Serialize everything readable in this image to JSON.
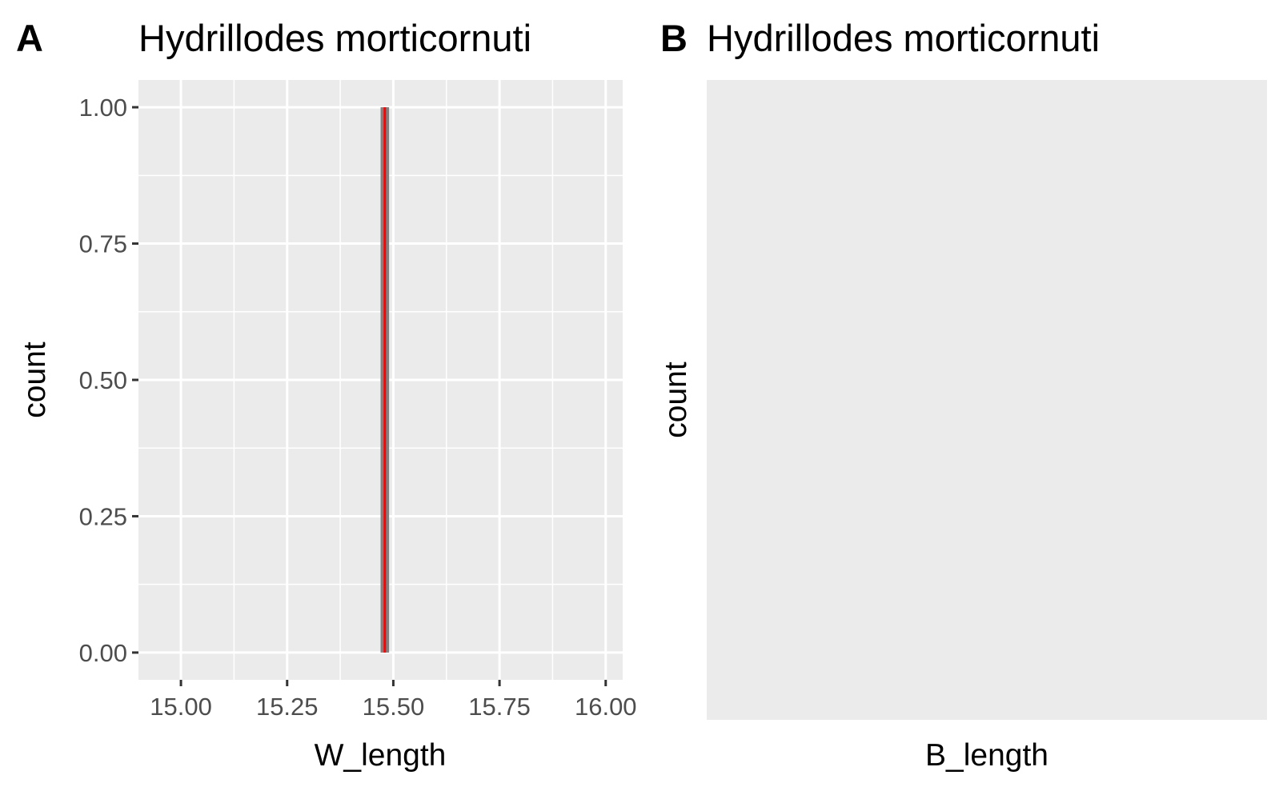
{
  "chart_data": [
    {
      "type": "histogram",
      "tag": "A",
      "title": "Hydrillodes morticornuti",
      "xlabel": "W_length",
      "ylabel": "count",
      "xlim": [
        14.9,
        16.04
      ],
      "ylim": [
        -0.05,
        1.05
      ],
      "x_ticks": [
        15.0,
        15.25,
        15.5,
        15.75,
        16.0
      ],
      "x_tick_labels": [
        "15.00",
        "15.25",
        "15.50",
        "15.75",
        "16.00"
      ],
      "y_ticks": [
        0.0,
        0.25,
        0.5,
        0.75,
        1.0
      ],
      "y_tick_labels": [
        "0.00",
        "0.25",
        "0.50",
        "0.75",
        "1.00"
      ],
      "bars": [
        {
          "xmin": 15.47,
          "xmax": 15.49,
          "count": 1
        }
      ],
      "vline": {
        "x": 15.48,
        "color": "#ff0000"
      },
      "grid": true,
      "colors": {
        "panel": "#ebebeb",
        "bar": "#808080",
        "grid": "#ffffff"
      }
    },
    {
      "type": "histogram",
      "tag": "B",
      "title": "Hydrillodes morticornuti",
      "xlabel": "B_length",
      "ylabel": "count",
      "bars": [],
      "grid": false,
      "colors": {
        "panel": "#ebebeb"
      }
    }
  ]
}
